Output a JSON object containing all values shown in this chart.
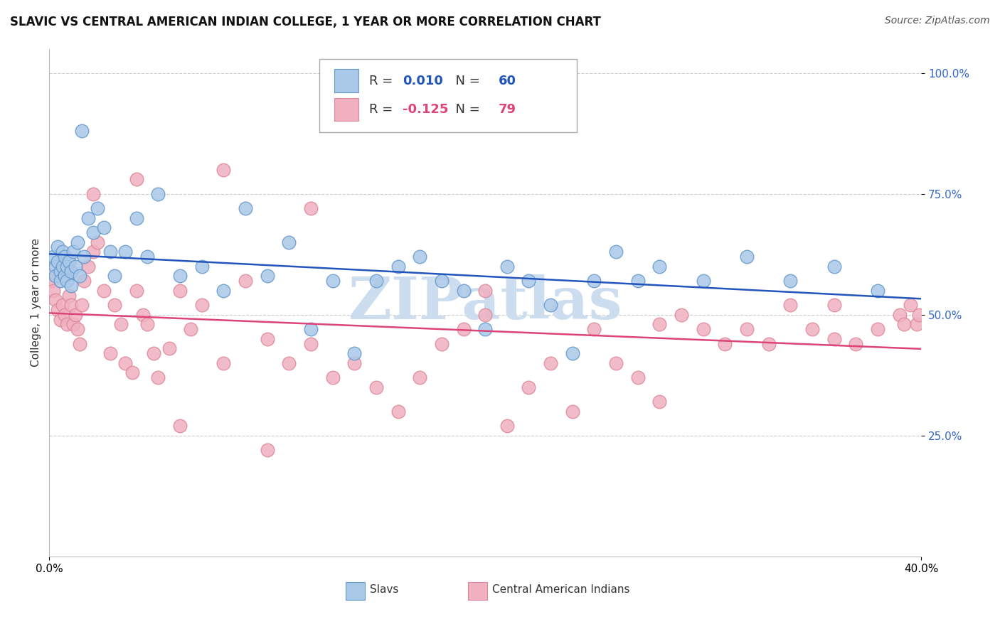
{
  "title": "SLAVIC VS CENTRAL AMERICAN INDIAN COLLEGE, 1 YEAR OR MORE CORRELATION CHART",
  "source": "Source: ZipAtlas.com",
  "ylabel": "College, 1 year or more",
  "ytick_labels": [
    "25.0%",
    "50.0%",
    "75.0%",
    "100.0%"
  ],
  "ytick_values": [
    0.25,
    0.5,
    0.75,
    1.0
  ],
  "xlim": [
    0.0,
    0.4
  ],
  "ylim": [
    0.0,
    1.05
  ],
  "blue_R": "0.010",
  "blue_N": "60",
  "pink_R": "-0.125",
  "pink_N": "79",
  "blue_scatter_x": [
    0.002,
    0.003,
    0.003,
    0.004,
    0.004,
    0.005,
    0.005,
    0.006,
    0.006,
    0.007,
    0.007,
    0.008,
    0.008,
    0.009,
    0.01,
    0.01,
    0.011,
    0.012,
    0.013,
    0.014,
    0.015,
    0.016,
    0.018,
    0.02,
    0.022,
    0.025,
    0.028,
    0.03,
    0.035,
    0.04,
    0.045,
    0.05,
    0.06,
    0.07,
    0.08,
    0.09,
    0.1,
    0.11,
    0.12,
    0.13,
    0.14,
    0.15,
    0.16,
    0.17,
    0.18,
    0.19,
    0.2,
    0.21,
    0.22,
    0.23,
    0.24,
    0.25,
    0.26,
    0.27,
    0.28,
    0.3,
    0.32,
    0.34,
    0.36,
    0.38
  ],
  "blue_scatter_y": [
    0.62,
    0.6,
    0.58,
    0.64,
    0.61,
    0.59,
    0.57,
    0.63,
    0.6,
    0.62,
    0.58,
    0.6,
    0.57,
    0.61,
    0.59,
    0.56,
    0.63,
    0.6,
    0.65,
    0.58,
    0.88,
    0.62,
    0.7,
    0.67,
    0.72,
    0.68,
    0.63,
    0.58,
    0.63,
    0.7,
    0.62,
    0.75,
    0.58,
    0.6,
    0.55,
    0.72,
    0.58,
    0.65,
    0.47,
    0.57,
    0.42,
    0.57,
    0.6,
    0.62,
    0.57,
    0.55,
    0.47,
    0.6,
    0.57,
    0.52,
    0.42,
    0.57,
    0.63,
    0.57,
    0.6,
    0.57,
    0.62,
    0.57,
    0.6,
    0.55
  ],
  "pink_scatter_x": [
    0.001,
    0.002,
    0.003,
    0.004,
    0.005,
    0.006,
    0.007,
    0.008,
    0.009,
    0.01,
    0.011,
    0.012,
    0.013,
    0.014,
    0.015,
    0.016,
    0.018,
    0.02,
    0.022,
    0.025,
    0.028,
    0.03,
    0.033,
    0.035,
    0.038,
    0.04,
    0.043,
    0.045,
    0.048,
    0.05,
    0.055,
    0.06,
    0.065,
    0.07,
    0.08,
    0.09,
    0.1,
    0.11,
    0.12,
    0.13,
    0.14,
    0.15,
    0.16,
    0.17,
    0.18,
    0.19,
    0.2,
    0.21,
    0.22,
    0.23,
    0.24,
    0.25,
    0.26,
    0.27,
    0.28,
    0.29,
    0.3,
    0.31,
    0.32,
    0.33,
    0.34,
    0.35,
    0.36,
    0.37,
    0.38,
    0.39,
    0.392,
    0.395,
    0.398,
    0.399,
    0.04,
    0.08,
    0.12,
    0.2,
    0.28,
    0.36,
    0.02,
    0.06,
    0.1
  ],
  "pink_scatter_y": [
    0.57,
    0.55,
    0.53,
    0.51,
    0.49,
    0.52,
    0.5,
    0.48,
    0.54,
    0.52,
    0.48,
    0.5,
    0.47,
    0.44,
    0.52,
    0.57,
    0.6,
    0.63,
    0.65,
    0.55,
    0.42,
    0.52,
    0.48,
    0.4,
    0.38,
    0.55,
    0.5,
    0.48,
    0.42,
    0.37,
    0.43,
    0.55,
    0.47,
    0.52,
    0.4,
    0.57,
    0.45,
    0.4,
    0.44,
    0.37,
    0.4,
    0.35,
    0.3,
    0.37,
    0.44,
    0.47,
    0.5,
    0.27,
    0.35,
    0.4,
    0.3,
    0.47,
    0.4,
    0.37,
    0.32,
    0.5,
    0.47,
    0.44,
    0.47,
    0.44,
    0.52,
    0.47,
    0.52,
    0.44,
    0.47,
    0.5,
    0.48,
    0.52,
    0.48,
    0.5,
    0.78,
    0.8,
    0.72,
    0.55,
    0.48,
    0.45,
    0.75,
    0.27,
    0.22
  ],
  "blue_line_color": "#2255bb",
  "pink_line_color": "#dd4477",
  "blue_marker_facecolor": "#aac8e8",
  "blue_marker_edgecolor": "#6699cc",
  "pink_marker_facecolor": "#f0b0c0",
  "pink_marker_edgecolor": "#dd8899",
  "grid_color": "#cccccc",
  "background_color": "#ffffff",
  "watermark_text": "ZIPatlas",
  "watermark_color": "#ccddf0",
  "title_fontsize": 12,
  "source_fontsize": 10,
  "axis_label_fontsize": 11,
  "tick_fontsize": 11,
  "legend_fontsize": 13
}
